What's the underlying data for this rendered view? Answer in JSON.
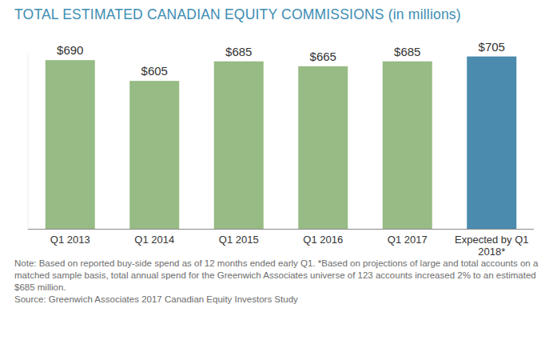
{
  "chart_data": {
    "type": "bar",
    "title": "TOTAL ESTIMATED CANADIAN EQUITY COMMISSIONS (in millions)",
    "categories": [
      "Q1 2013",
      "Q1 2014",
      "Q1 2015",
      "Q1 2016",
      "Q1 2017",
      "Expected by Q1 2018*"
    ],
    "values": [
      690,
      605,
      685,
      665,
      685,
      705
    ],
    "value_labels": [
      "$690",
      "$605",
      "$685",
      "$665",
      "$685",
      "$705"
    ],
    "colors": [
      "#97bb84",
      "#97bb84",
      "#97bb84",
      "#97bb84",
      "#97bb84",
      "#4a8bae"
    ],
    "ylim": [
      0,
      720
    ],
    "data_labels": true,
    "tick_labels": "x",
    "grid": false,
    "annotations": [
      "Note: Based on reported buy-side spend as of 12 months ended early Q1. *Based on projections of large and total accounts on a matched sample basis, total annual spend for the Greenwich Associates universe of 123 accounts increased 2% to an estimated $685 million.",
      "Source: Greenwich Associates 2017 Canadian Equity Investors Study"
    ]
  }
}
